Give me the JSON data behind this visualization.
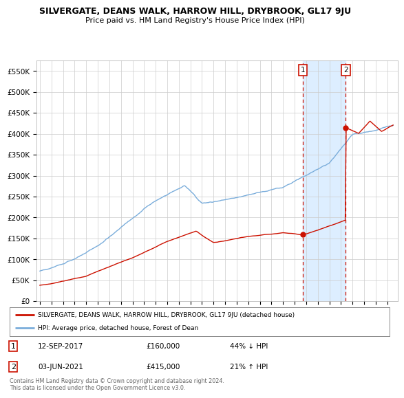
{
  "title": "SILVERGATE, DEANS WALK, HARROW HILL, DRYBROOK, GL17 9JU",
  "subtitle": "Price paid vs. HM Land Registry's House Price Index (HPI)",
  "ylim": [
    0,
    575000
  ],
  "yticks": [
    0,
    50000,
    100000,
    150000,
    200000,
    250000,
    300000,
    350000,
    400000,
    450000,
    500000,
    550000
  ],
  "ytick_labels": [
    "£0",
    "£50K",
    "£100K",
    "£150K",
    "£200K",
    "£250K",
    "£300K",
    "£350K",
    "£400K",
    "£450K",
    "£500K",
    "£550K"
  ],
  "hpi_color": "#7aaddb",
  "price_color": "#cc1100",
  "shade_color": "#ddeeff",
  "annotation1_date": 2017.71,
  "annotation1_price": 160000,
  "annotation2_date": 2021.42,
  "annotation2_price": 415000,
  "legend_line1": "SILVERGATE, DEANS WALK, HARROW HILL, DRYBROOK, GL17 9JU (detached house)",
  "legend_line2": "HPI: Average price, detached house, Forest of Dean",
  "note1_label": "1",
  "note1_date": "12-SEP-2017",
  "note1_price": "£160,000",
  "note1_hpi": "44% ↓ HPI",
  "note2_label": "2",
  "note2_date": "03-JUN-2021",
  "note2_price": "£415,000",
  "note2_hpi": "21% ↑ HPI",
  "footer": "Contains HM Land Registry data © Crown copyright and database right 2024.\nThis data is licensed under the Open Government Licence v3.0.",
  "background_color": "#ffffff",
  "grid_color": "#cccccc",
  "xlim_left": 1994.7,
  "xlim_right": 2025.9
}
